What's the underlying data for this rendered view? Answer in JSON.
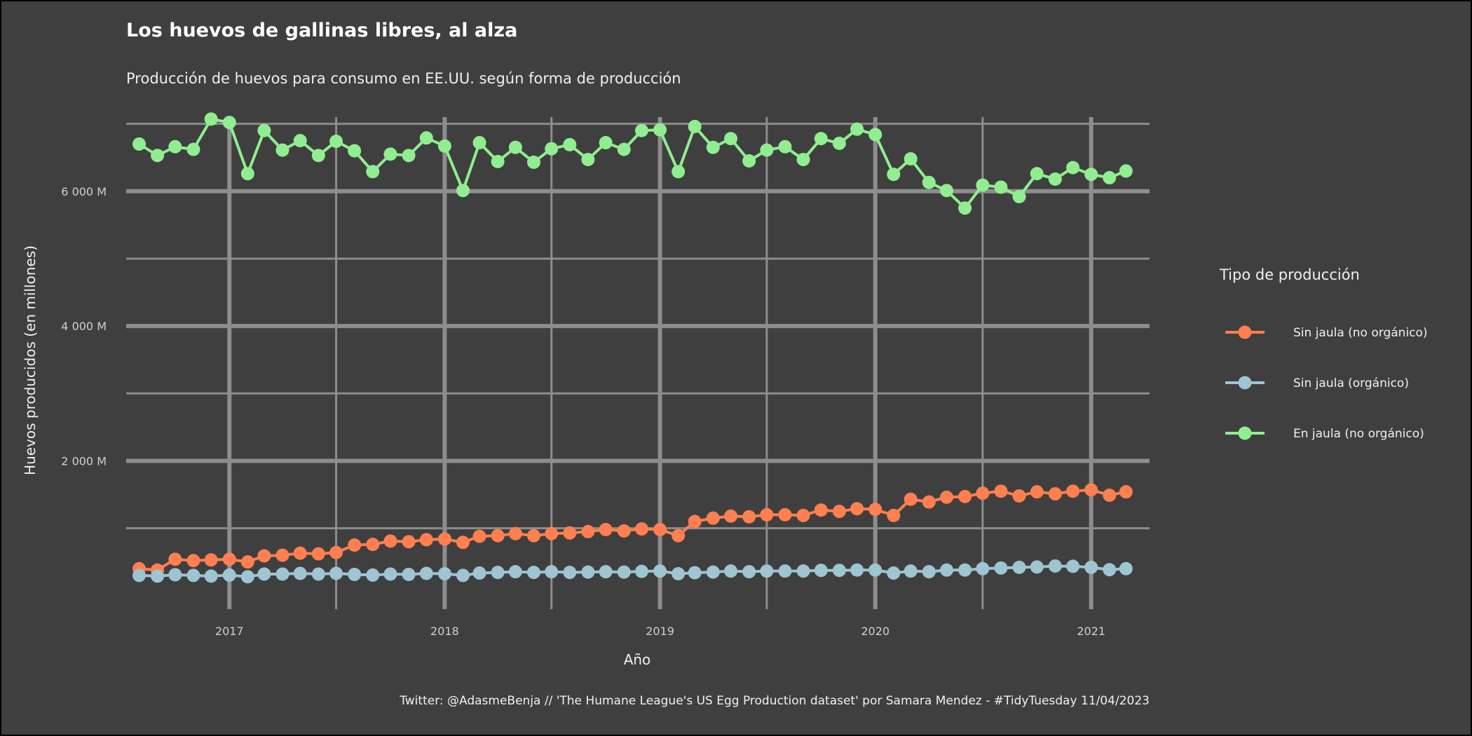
{
  "chart_data": {
    "type": "line",
    "title": "Los huevos de gallinas libres, al alza",
    "subtitle": "Producción de huevos para consumo en EE.UU. según forma de producción",
    "caption": "Twitter: @AdasmeBenja // 'The Humane League's US Egg Production dataset' por Samara Mendez - #TidyTuesday 11/04/2023",
    "xlabel": "Año",
    "ylabel": "Huevos producidos (en millones)",
    "x_ticks": [
      "2017",
      "2018",
      "2019",
      "2020",
      "2021"
    ],
    "y_ticks": [
      "2 000 M",
      "4 000 M",
      "6 000 M"
    ],
    "y_tick_values": [
      2000,
      4000,
      6000
    ],
    "ylim": [
      -200,
      7100
    ],
    "xlim": [
      "2016-07-10",
      "2021-04-10"
    ],
    "grid": true,
    "legend_title": "Tipo de producción",
    "legend_position": "right",
    "x": [
      "2016-08",
      "2016-09",
      "2016-10",
      "2016-11",
      "2016-12",
      "2017-01",
      "2017-02",
      "2017-03",
      "2017-04",
      "2017-05",
      "2017-06",
      "2017-07",
      "2017-08",
      "2017-09",
      "2017-10",
      "2017-11",
      "2017-12",
      "2018-01",
      "2018-02",
      "2018-03",
      "2018-04",
      "2018-05",
      "2018-06",
      "2018-07",
      "2018-08",
      "2018-09",
      "2018-10",
      "2018-11",
      "2018-12",
      "2019-01",
      "2019-02",
      "2019-03",
      "2019-04",
      "2019-05",
      "2019-06",
      "2019-07",
      "2019-08",
      "2019-09",
      "2019-10",
      "2019-11",
      "2019-12",
      "2020-01",
      "2020-02",
      "2020-03",
      "2020-04",
      "2020-05",
      "2020-06",
      "2020-07",
      "2020-08",
      "2020-09",
      "2020-10",
      "2020-11",
      "2020-12",
      "2021-01",
      "2021-02",
      "2021-03"
    ],
    "series": [
      {
        "name": "Sin jaula (no orgánico)",
        "color": "#ff7f50",
        "values": [
          400,
          380,
          540,
          520,
          530,
          540,
          500,
          590,
          600,
          630,
          620,
          640,
          750,
          760,
          810,
          800,
          830,
          840,
          790,
          880,
          890,
          920,
          890,
          920,
          930,
          950,
          980,
          960,
          990,
          980,
          890,
          1100,
          1150,
          1180,
          1170,
          1200,
          1200,
          1190,
          1270,
          1250,
          1290,
          1280,
          1190,
          1430,
          1390,
          1460,
          1470,
          1520,
          1550,
          1480,
          1540,
          1510,
          1550,
          1570,
          1490,
          1540
        ]
      },
      {
        "name": "Sin jaula (orgánico)",
        "color": "#9fc4d2",
        "values": [
          300,
          290,
          310,
          300,
          290,
          305,
          280,
          320,
          320,
          330,
          320,
          330,
          315,
          305,
          320,
          315,
          330,
          325,
          300,
          335,
          345,
          355,
          345,
          355,
          345,
          350,
          355,
          350,
          360,
          365,
          325,
          340,
          350,
          365,
          355,
          365,
          365,
          365,
          375,
          375,
          380,
          380,
          335,
          365,
          355,
          380,
          380,
          400,
          410,
          420,
          425,
          440,
          435,
          420,
          385,
          400
        ]
      },
      {
        "name": "En jaula (no orgánico)",
        "color": "#90ee90",
        "values": [
          6700,
          6530,
          6660,
          6620,
          7070,
          7020,
          6260,
          6900,
          6610,
          6750,
          6530,
          6740,
          6600,
          6290,
          6550,
          6530,
          6790,
          6670,
          6010,
          6720,
          6440,
          6650,
          6430,
          6630,
          6690,
          6470,
          6720,
          6620,
          6900,
          6910,
          6290,
          6960,
          6650,
          6780,
          6450,
          6610,
          6660,
          6470,
          6780,
          6710,
          6920,
          6840,
          6250,
          6480,
          6130,
          6010,
          5750,
          6090,
          6060,
          5920,
          6260,
          6180,
          6350,
          6250,
          6200,
          6300
        ]
      }
    ]
  }
}
